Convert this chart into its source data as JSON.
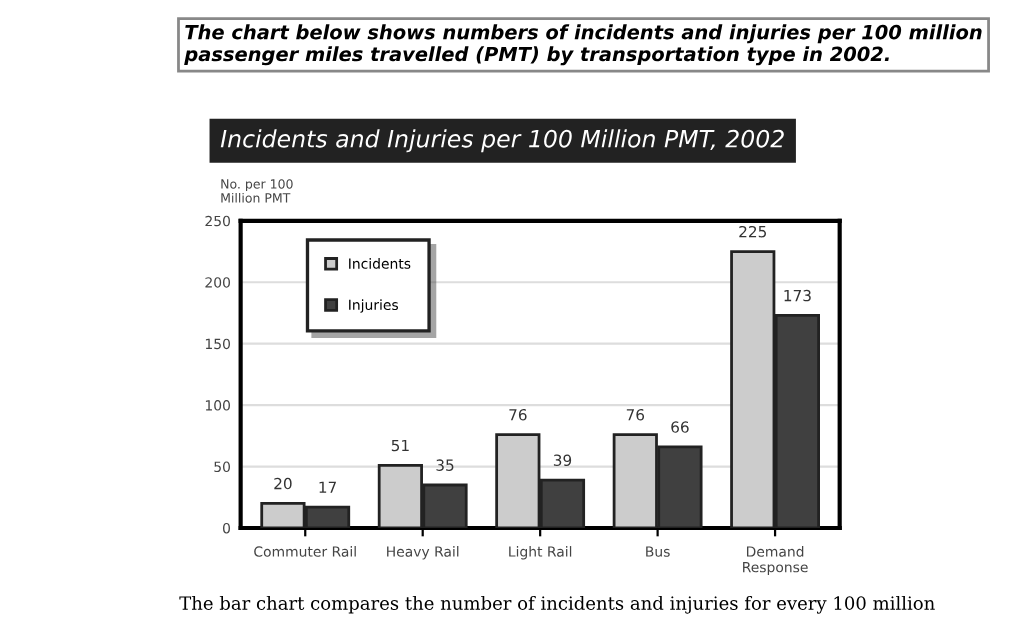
{
  "chart_data": {
    "type": "bar",
    "title": "Incidents and Injuries per 100 Million PMT, 2002",
    "ylabel": "No. per 100\nMillion PMT",
    "categories": [
      "Commuter Rail",
      "Heavy Rail",
      "Light Rail",
      "Bus",
      "Demand\nResponse"
    ],
    "series": [
      {
        "name": "Incidents",
        "color": "#cccccc",
        "values": [
          20,
          51,
          76,
          76,
          225
        ]
      },
      {
        "name": "Injuries",
        "color": "#404040",
        "values": [
          17,
          35,
          39,
          66,
          173
        ]
      }
    ],
    "ylim": [
      0,
      250
    ],
    "yticks": [
      0,
      50,
      100,
      150,
      200,
      250
    ],
    "grid": "y",
    "legend": "top left",
    "data_labels": true,
    "annotations": [
      "The chart below shows numbers of incidents and injuries per 100 million passenger miles travelled (PMT) by transportation type in 2002.",
      "The bar chart compares the number of incidents and injuries for every 100 million"
    ]
  }
}
